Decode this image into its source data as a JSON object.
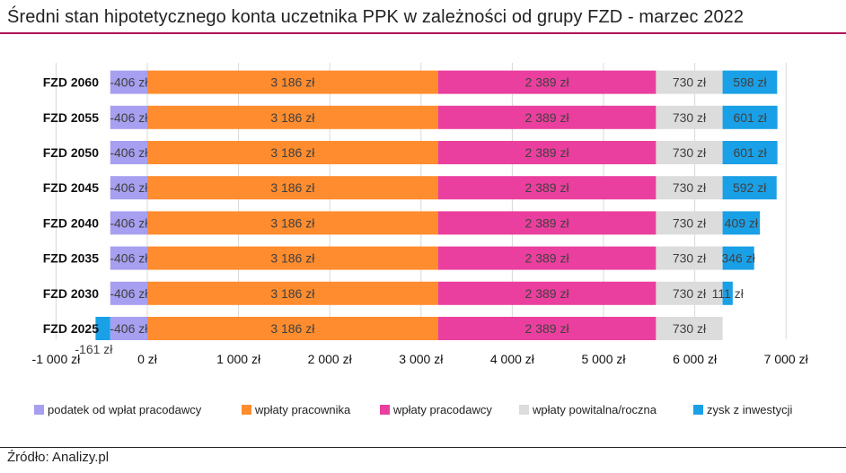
{
  "title": "Średni stan hipotetycznego konta uczetnika PPK w zależności od grupy FZD - marzec 2022",
  "source": "Źródło: Analizy.pl",
  "chart_data": {
    "type": "bar",
    "orientation": "horizontal",
    "stacked": true,
    "xlim": [
      -1000,
      7000
    ],
    "x_ticks": [
      -1000,
      0,
      1000,
      2000,
      3000,
      4000,
      5000,
      6000,
      7000
    ],
    "x_tick_labels": [
      "-1 000 zł",
      "0 zł",
      "1 000 zł",
      "2 000 zł",
      "3 000 zł",
      "4 000 zł",
      "5 000 zł",
      "6 000 zł",
      "7 000 zł"
    ],
    "categories": [
      "FZD 2060",
      "FZD 2055",
      "FZD 2050",
      "FZD 2045",
      "FZD 2040",
      "FZD 2035",
      "FZD 2030",
      "FZD 2025"
    ],
    "series": [
      {
        "name": "podatek od wpłat pracodawcy",
        "color": "#a79ff0",
        "values": [
          -406,
          -406,
          -406,
          -406,
          -406,
          -406,
          -406,
          -406
        ],
        "labels": [
          "-406 zł",
          "-406 zł",
          "-406 zł",
          "-406 zł",
          "-406 zł",
          "-406 zł",
          "-406 zł",
          "-406 zł"
        ]
      },
      {
        "name": "wpłaty pracownika",
        "color": "#ff8c2e",
        "values": [
          3186,
          3186,
          3186,
          3186,
          3186,
          3186,
          3186,
          3186
        ],
        "labels": [
          "3 186 zł",
          "3 186 zł",
          "3 186 zł",
          "3 186 zł",
          "3 186 zł",
          "3 186 zł",
          "3 186 zł",
          "3 186 zł"
        ]
      },
      {
        "name": "wpłaty pracodawcy",
        "color": "#ea3f9e",
        "values": [
          2389,
          2389,
          2389,
          2389,
          2389,
          2389,
          2389,
          2389
        ],
        "labels": [
          "2 389 zł",
          "2 389 zł",
          "2 389 zł",
          "2 389 zł",
          "2 389 zł",
          "2 389 zł",
          "2 389 zł",
          "2 389 zł"
        ]
      },
      {
        "name": "wpłaty powitalna/roczna",
        "color": "#dcdcdc",
        "values": [
          730,
          730,
          730,
          730,
          730,
          730,
          730,
          730
        ],
        "labels": [
          "730 zł",
          "730 zł",
          "730 zł",
          "730 zł",
          "730 zł",
          "730 zł",
          "730 zł",
          "730 zł"
        ]
      },
      {
        "name": "zysk z inwestycji",
        "color": "#1aa0e6",
        "values": [
          598,
          601,
          601,
          592,
          409,
          346,
          111,
          -161
        ],
        "labels": [
          "598 zł",
          "601 zł",
          "601 zł",
          "592 zł",
          "409 zł",
          "346 zł",
          "111 zł",
          "-161 zł"
        ]
      }
    ],
    "gridlines": true,
    "legend_position": "bottom"
  }
}
